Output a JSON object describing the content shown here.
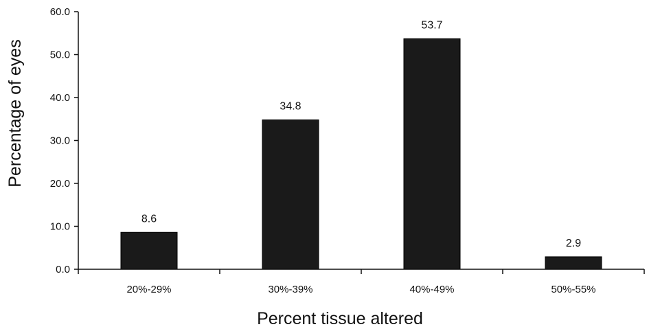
{
  "chart_data": {
    "type": "bar",
    "categories": [
      "20%-29%",
      "30%-39%",
      "40%-49%",
      "50%-55%"
    ],
    "values": [
      8.6,
      34.8,
      53.7,
      2.9
    ],
    "data_labels": [
      "8.6",
      "34.8",
      "53.7",
      "2.9"
    ],
    "xlabel": "Percent tissue altered",
    "ylabel": "Percentage of eyes",
    "ylim": [
      0,
      60
    ],
    "yticks": [
      0,
      10,
      20,
      30,
      40,
      50,
      60
    ],
    "ytick_labels": [
      "0.0",
      "10.0",
      "20.0",
      "30.0",
      "40.0",
      "50.0",
      "60.0"
    ],
    "grid": false,
    "bar_color": "#1a1a1a"
  }
}
